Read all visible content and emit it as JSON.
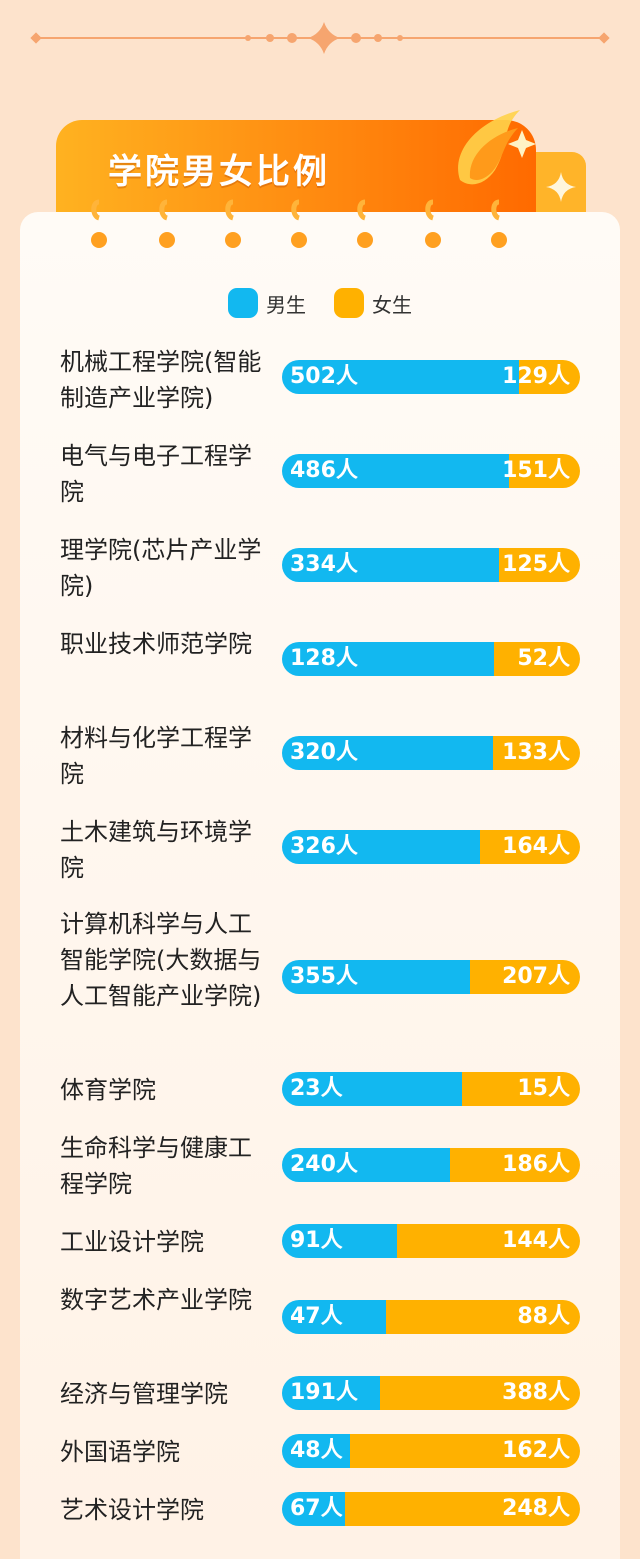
{
  "header": {
    "title": "学院男女比例"
  },
  "colors": {
    "male": "#12b8f0",
    "female": "#ffb100",
    "accent": "#ff8a10"
  },
  "chart_data": {
    "type": "bar",
    "orientation": "horizontal",
    "stacked": true,
    "legend": {
      "position": "top",
      "entries": [
        "男生",
        "女生"
      ]
    },
    "categories": [
      "机械工程学院(智能制造产业学院)",
      "电气与电子工程学院",
      "理学院(芯片产业学院)",
      "职业技术师范学院",
      "材料与化学工程学院",
      "土木建筑与环境学院",
      "计算机科学与人工智能学院(大数据与人工智能产业学院)",
      "体育学院",
      "生命科学与健康工程学院",
      "工业设计学院",
      "数字艺术产业学院",
      "经济与管理学院",
      "外国语学院",
      "艺术设计学院"
    ],
    "series": [
      {
        "name": "男生",
        "values": [
          502,
          486,
          334,
          128,
          320,
          326,
          355,
          23,
          240,
          91,
          47,
          191,
          48,
          67
        ]
      },
      {
        "name": "女生",
        "values": [
          129,
          151,
          125,
          52,
          133,
          164,
          207,
          15,
          186,
          144,
          88,
          388,
          162,
          248
        ]
      }
    ],
    "value_labels_male": [
      "502人",
      "486人",
      "334人",
      "128人",
      "320人",
      "326人",
      "355人",
      "23人",
      "240人",
      "91人",
      "47人",
      "191人",
      "48人",
      "67人"
    ],
    "value_labels_female": [
      "129人",
      "151人",
      "125人",
      "52人",
      "133人",
      "164人",
      "207人",
      "15人",
      "186人",
      "144人",
      "88人",
      "388人",
      "162人",
      "248人"
    ]
  }
}
